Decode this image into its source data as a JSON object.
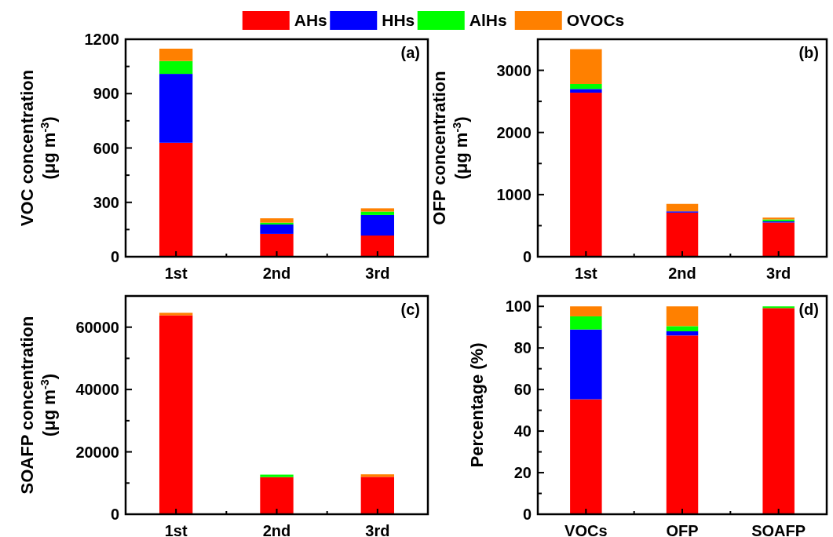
{
  "chart_data": [
    {
      "type": "bar",
      "stacked": true,
      "ylabel": "VOC concentration\n(μg m$^{-3}$)",
      "categories": [
        "1st",
        "2nd",
        "3rd"
      ],
      "legend": "top",
      "annotations": [
        "(a)"
      ],
      "ylim": [
        0,
        1200
      ],
      "yticks": [
        0,
        {
          "value": 150,
          "label": null
        },
        300,
        {
          "value": 450,
          "label": null
        },
        600,
        {
          "value": 750,
          "label": null
        },
        900,
        {
          "value": 1050,
          "label": null
        },
        1200
      ],
      "series": [
        {
          "name": "AHs",
          "color": "#ff0000",
          "values": [
            629,
            126,
            117
          ]
        },
        {
          "name": "HHs",
          "color": "#0000ff",
          "values": [
            380,
            52,
            113
          ]
        },
        {
          "name": "AlHs",
          "color": "#00ff00",
          "values": [
            71,
            10,
            19
          ]
        },
        {
          "name": "OVOCs",
          "color": "#ff8000",
          "values": [
            68,
            24,
            18
          ]
        }
      ]
    },
    {
      "type": "bar",
      "stacked": true,
      "ylabel": "OFP concentration\n(μg m$^{-3}$)",
      "categories": [
        "1st",
        "2nd",
        "3rd"
      ],
      "annotations": [
        "(b)"
      ],
      "ylim": [
        0,
        3500
      ],
      "yticks": [
        0,
        {
          "value": 500,
          "label": null
        },
        1000,
        {
          "value": 1500,
          "label": null
        },
        2000,
        {
          "value": 2500,
          "label": null
        },
        3000
      ],
      "series": [
        {
          "color": "#ff0000",
          "values": [
            2640,
            710,
            550
          ]
        },
        {
          "color": "#0000ff",
          "values": [
            60,
            20,
            20
          ]
        },
        {
          "color": "#00ff00",
          "values": [
            80,
            null,
            30
          ]
        },
        {
          "color": "#ff8000",
          "values": [
            560,
            120,
            30
          ]
        }
      ]
    },
    {
      "type": "bar",
      "stacked": true,
      "ylabel": "SOAFP concentration\n(μg m$^{-3}$)",
      "categories": [
        "1st",
        "2nd",
        "3rd"
      ],
      "annotations": [
        "(c)"
      ],
      "ylim": [
        0,
        70000
      ],
      "yticks": [
        0,
        {
          "value": 10000,
          "label": null
        },
        20000,
        {
          "value": 30000,
          "label": null
        },
        40000,
        {
          "value": 50000,
          "label": null
        },
        60000
      ],
      "series": [
        {
          "color": "#ff0000",
          "values": [
            63800,
            11900,
            12000
          ]
        },
        {
          "color": "#0000ff",
          "values": [
            0,
            0,
            0
          ]
        },
        {
          "color": "#00ff00",
          "values": [
            0,
            800,
            0
          ]
        },
        {
          "color": "#ff8000",
          "values": [
            800,
            0,
            800
          ]
        }
      ]
    },
    {
      "type": "bar",
      "stacked": true,
      "ylabel": "Percentage (%)",
      "categories": [
        "VOCs",
        "OFP",
        "SOAFP"
      ],
      "annotations": [
        "(d)"
      ],
      "ylim": [
        0,
        105
      ],
      "yticks": [
        0,
        {
          "value": 10,
          "label": null
        },
        20,
        {
          "value": 30,
          "label": null
        },
        40,
        {
          "value": 50,
          "label": null
        },
        60,
        {
          "value": 70,
          "label": null
        },
        80,
        {
          "value": 90,
          "label": null
        },
        100
      ],
      "series": [
        {
          "color": "#ff0000",
          "values": [
            55.3,
            86.0,
            99.2
          ]
        },
        {
          "color": "#0000ff",
          "values": [
            33.6,
            2.0,
            0
          ]
        },
        {
          "color": "#00ff00",
          "values": [
            6.3,
            2.5,
            0.8
          ]
        },
        {
          "color": "#ff8000",
          "values": [
            4.8,
            9.5,
            0
          ]
        }
      ]
    }
  ]
}
